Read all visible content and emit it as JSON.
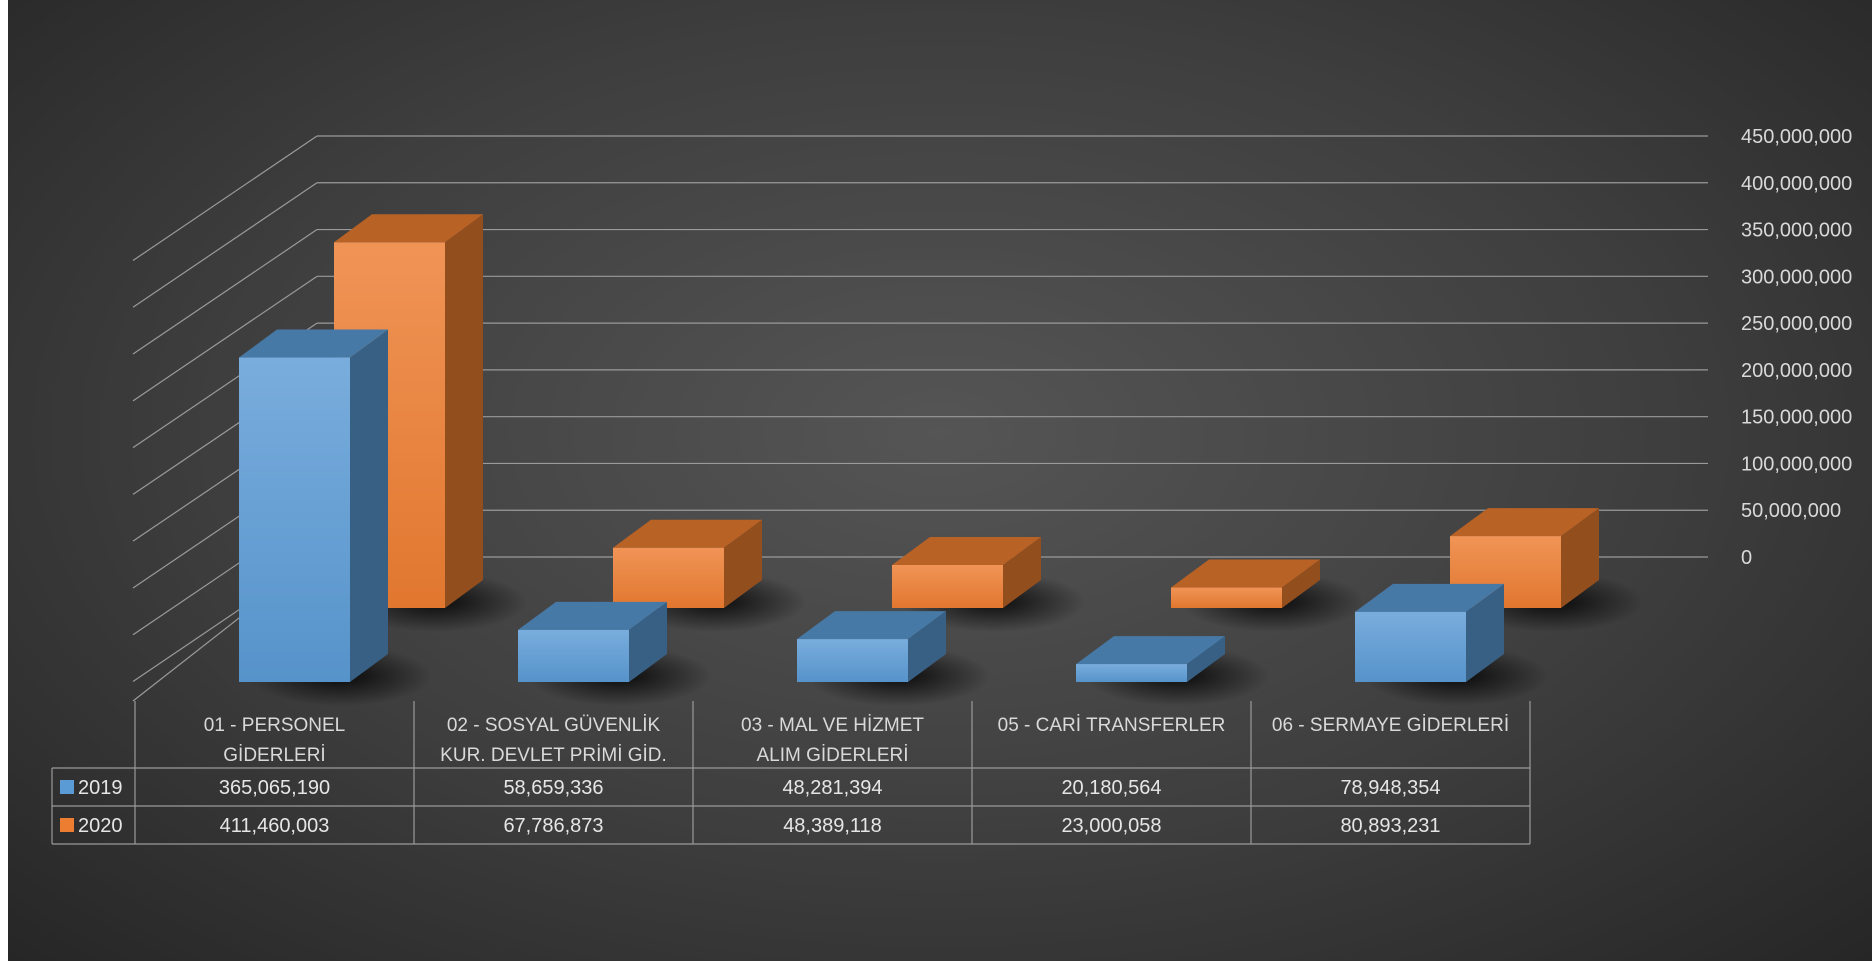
{
  "chart_data": {
    "type": "bar",
    "categories": [
      [
        "01 - PERSONEL",
        "GİDERLERİ"
      ],
      [
        "02 - SOSYAL GÜVENLİK",
        "KUR. DEVLET PRİMİ GİD."
      ],
      [
        "03 - MAL VE HİZMET",
        "ALIM GİDERLERİ"
      ],
      [
        "05 - CARİ TRANSFERLER"
      ],
      [
        "06 - SERMAYE GİDERLERİ"
      ]
    ],
    "series": [
      {
        "name": "2019",
        "values": [
          365065190,
          58659336,
          48281394,
          20180564,
          78948354
        ],
        "labels": [
          "365,065,190",
          "58,659,336",
          "48,281,394",
          "20,180,564",
          "78,948,354"
        ]
      },
      {
        "name": "2020",
        "values": [
          411460003,
          67786873,
          48389118,
          23000058,
          80893231
        ],
        "labels": [
          "411,460,003",
          "67,786,873",
          "48,389,118",
          "23,000,058",
          "80,893,231"
        ]
      }
    ],
    "yticks": [
      "0",
      "50,000,000",
      "100,000,000",
      "150,000,000",
      "200,000,000",
      "250,000,000",
      "300,000,000",
      "350,000,000",
      "400,000,000",
      "450,000,000"
    ],
    "ylim": [
      0,
      450000000
    ],
    "grid": true,
    "legend": "data-table",
    "title": "",
    "xlabel": "",
    "ylabel": ""
  },
  "colors": {
    "series_2019": "#5b9bd5",
    "series_2020": "#ed7d31",
    "gridline": "#9a9a9a",
    "text": "#d9d9d9"
  }
}
